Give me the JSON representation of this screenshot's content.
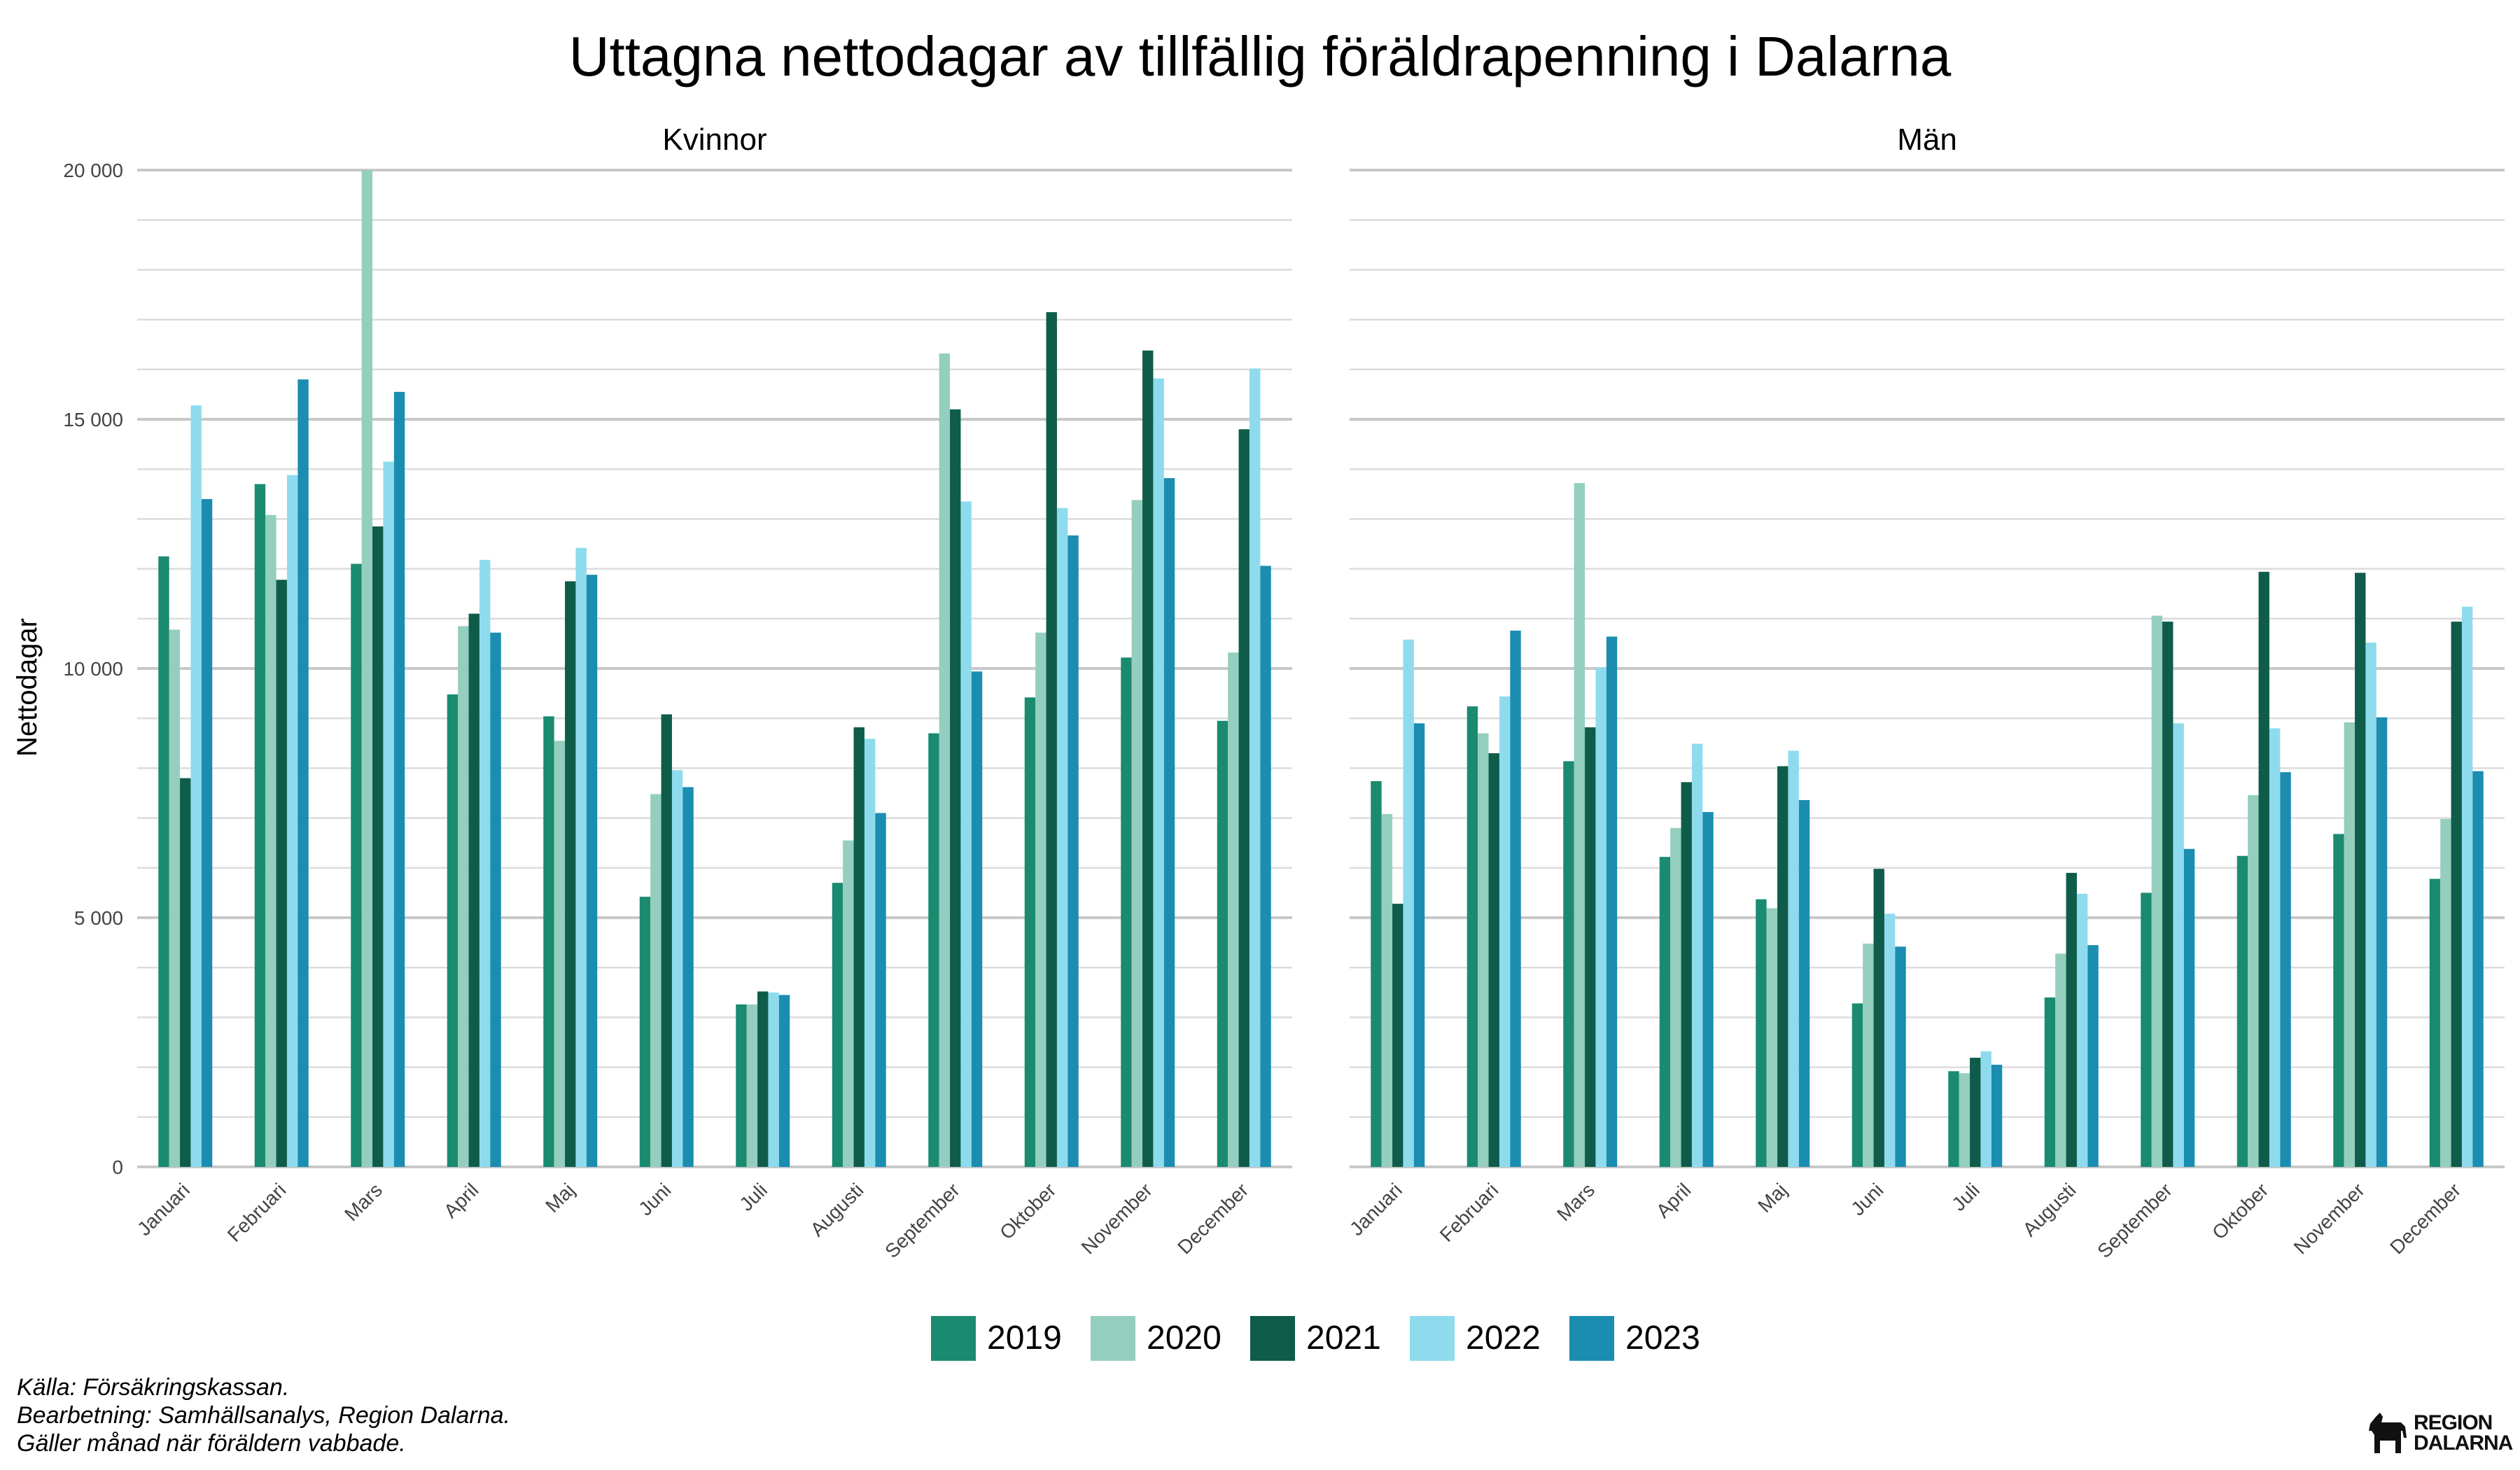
{
  "chart_data": {
    "type": "bar",
    "title": "Uttagna nettodagar av tillfällig föräldrapenning i Dalarna",
    "ylabel": "Nettodagar",
    "xlabel": "",
    "ylim": [
      0,
      20000
    ],
    "y_ticks": [
      0,
      5000,
      10000,
      15000,
      20000
    ],
    "y_tick_labels": [
      "0",
      "5 000",
      "10 000",
      "15 000",
      "20 000"
    ],
    "grid": true,
    "legend_position": "bottom",
    "categories": [
      "Januari",
      "Februari",
      "Mars",
      "April",
      "Maj",
      "Juni",
      "Juli",
      "Augusti",
      "September",
      "Oktober",
      "November",
      "December"
    ],
    "series_names": [
      "2019",
      "2020",
      "2021",
      "2022",
      "2023"
    ],
    "series_colors": [
      "#1a8a70",
      "#94cebe",
      "#0f5c4b",
      "#8fdbee",
      "#1b8db0"
    ],
    "panels": [
      {
        "name": "Kvinnor",
        "series": [
          {
            "name": "2019",
            "values": [
              12250,
              13700,
              12100,
              9480,
              9040,
              5420,
              3260,
              5700,
              8700,
              9420,
              10220,
              8950
            ]
          },
          {
            "name": "2020",
            "values": [
              10780,
              13080,
              20000,
              10850,
              8550,
              7480,
              3260,
              6550,
              16320,
              10720,
              13380,
              10320
            ]
          },
          {
            "name": "2021",
            "values": [
              7800,
              11780,
              12850,
              11100,
              11750,
              9080,
              3520,
              8820,
              15200,
              17150,
              16380,
              14800
            ]
          },
          {
            "name": "2022",
            "values": [
              15280,
              13880,
              14150,
              12180,
              12420,
              7960,
              3500,
              8590,
              13350,
              13220,
              15820,
              16020
            ]
          },
          {
            "name": "2023",
            "values": [
              13400,
              15800,
              15550,
              10720,
              11880,
              7620,
              3450,
              7100,
              9940,
              12670,
              13820,
              12060
            ]
          }
        ]
      },
      {
        "name": "Män",
        "series": [
          {
            "name": "2019",
            "values": [
              7740,
              9240,
              8140,
              6220,
              5370,
              3280,
              1920,
              3400,
              5500,
              6240,
              6680,
              5780
            ]
          },
          {
            "name": "2020",
            "values": [
              7080,
              8700,
              13720,
              6800,
              5190,
              4480,
              1880,
              4280,
              11060,
              7460,
              8920,
              6980
            ]
          },
          {
            "name": "2021",
            "values": [
              5280,
              8300,
              8820,
              7720,
              8040,
              5980,
              2190,
              5900,
              10940,
              11940,
              11920,
              10940
            ]
          },
          {
            "name": "2022",
            "values": [
              10580,
              9440,
              10020,
              8490,
              8350,
              5080,
              2320,
              5480,
              8900,
              8800,
              10520,
              11240
            ]
          },
          {
            "name": "2023",
            "values": [
              8900,
              10760,
              10640,
              7120,
              7360,
              4420,
              2050,
              4450,
              6380,
              7920,
              9020,
              7940
            ]
          }
        ]
      }
    ]
  },
  "caption": {
    "source": "Källa: Försäkringskassan.",
    "processing": "Bearbetning: Samhällsanalys, Region Dalarna.",
    "note": "Gäller månad när föräldern vabbade."
  },
  "logo": {
    "line1": "REGION",
    "line2": "DALARNA",
    "icon": "dala-horse-icon"
  }
}
